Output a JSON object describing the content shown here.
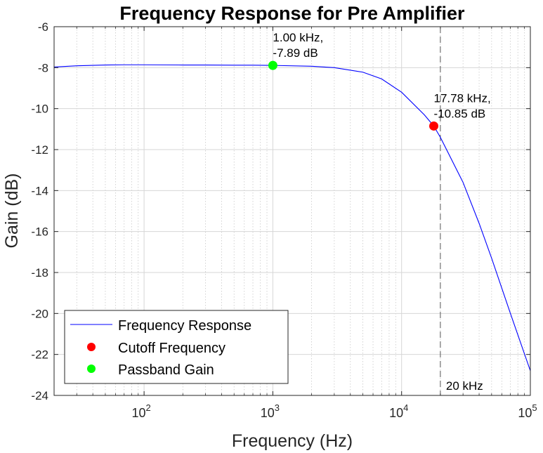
{
  "chart_data": {
    "type": "line",
    "title": "Frequency Response for Pre Amplifier",
    "xlabel": "Frequency (Hz)",
    "ylabel": "Gain (dB)",
    "xscale": "log",
    "xlim": [
      20,
      100000
    ],
    "ylim": [
      -24,
      -6
    ],
    "grid": true,
    "legend_position": "bottom-left",
    "x_ticks": [
      {
        "base": "10",
        "exp": "2"
      },
      {
        "base": "10",
        "exp": "3"
      },
      {
        "base": "10",
        "exp": "4"
      },
      {
        "base": "10",
        "exp": "5"
      }
    ],
    "x_tick_values": [
      100,
      1000,
      10000,
      100000
    ],
    "y_ticks": [
      "-6",
      "-8",
      "-10",
      "-12",
      "-14",
      "-16",
      "-18",
      "-20",
      "-22",
      "-24"
    ],
    "y_tick_values": [
      -6,
      -8,
      -10,
      -12,
      -14,
      -16,
      -18,
      -20,
      -22,
      -24
    ],
    "series": [
      {
        "name": "Frequency Response",
        "color": "#0000ff",
        "x": [
          20,
          30,
          50,
          70,
          100,
          200,
          300,
          500,
          700,
          1000,
          2000,
          3000,
          5000,
          7000,
          10000,
          15000,
          17780,
          20000,
          30000,
          40000,
          50000,
          70000,
          100000
        ],
        "y": [
          -7.97,
          -7.91,
          -7.87,
          -7.86,
          -7.86,
          -7.87,
          -7.87,
          -7.88,
          -7.88,
          -7.89,
          -7.93,
          -8.0,
          -8.22,
          -8.55,
          -9.2,
          -10.3,
          -10.85,
          -11.4,
          -13.6,
          -15.6,
          -17.3,
          -20.0,
          -22.8
        ]
      }
    ],
    "markers": [
      {
        "name": "Cutoff Frequency",
        "x": 17780,
        "y": -10.85,
        "color": "#ff0000",
        "label_line1": "17.78 kHz,",
        "label_line2": "-10.85 dB"
      },
      {
        "name": "Passband Gain",
        "x": 1000,
        "y": -7.89,
        "color": "#00ff00",
        "label_line1": "1.00 kHz,",
        "label_line2": "-7.89 dB"
      }
    ],
    "reference_line": {
      "x": 20000,
      "label": "20 kHz",
      "style": "dashed",
      "color": "#555555"
    }
  }
}
